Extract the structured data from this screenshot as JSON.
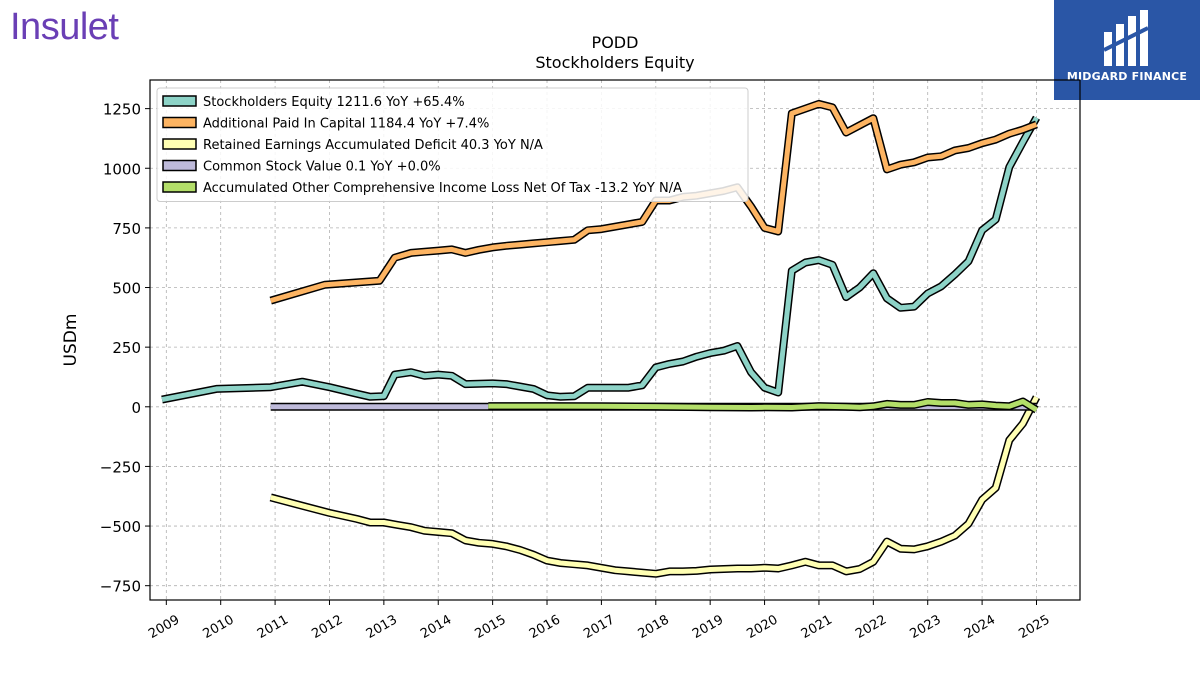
{
  "brand": {
    "name": "Insulet"
  },
  "badge": {
    "name": "MIDGARD FINANCE",
    "color": "#2a56a6"
  },
  "chart_data": {
    "type": "line",
    "title": "PODD",
    "subtitle": "Stockholders  Equity",
    "ylabel": "USDm",
    "xlabel": "",
    "ylim": [
      -810,
      1370
    ],
    "xlim": [
      2008.7,
      2025.8
    ],
    "yticks": [
      -750,
      -500,
      -250,
      0,
      250,
      500,
      750,
      1000,
      1250
    ],
    "ytick_labels": [
      "−750",
      "−500",
      "−250",
      "0",
      "250",
      "500",
      "750",
      "1000",
      "1250"
    ],
    "xticks": [
      2009,
      2010,
      2011,
      2012,
      2013,
      2014,
      2015,
      2016,
      2017,
      2018,
      2019,
      2020,
      2021,
      2022,
      2023,
      2024,
      2025
    ],
    "xtick_labels": [
      "2009",
      "2010",
      "2011",
      "2012",
      "2013",
      "2014",
      "2015",
      "2016",
      "2017",
      "2018",
      "2019",
      "2020",
      "2021",
      "2022",
      "2023",
      "2024",
      "2025"
    ],
    "grid": true,
    "legend_position": "top-left",
    "series": [
      {
        "name": "Stockholders Equity  1211.6 YoY +65.4%",
        "color": "#8dd3c7",
        "points": [
          [
            2008.92,
            30
          ],
          [
            2009.92,
            75
          ],
          [
            2010.92,
            82
          ],
          [
            2011.5,
            105
          ],
          [
            2012.0,
            82
          ],
          [
            2012.5,
            55
          ],
          [
            2012.75,
            42
          ],
          [
            2013.0,
            45
          ],
          [
            2013.2,
            135
          ],
          [
            2013.5,
            145
          ],
          [
            2013.75,
            130
          ],
          [
            2014.0,
            135
          ],
          [
            2014.25,
            130
          ],
          [
            2014.5,
            95
          ],
          [
            2015.0,
            98
          ],
          [
            2015.25,
            95
          ],
          [
            2015.5,
            85
          ],
          [
            2015.75,
            75
          ],
          [
            2016.0,
            48
          ],
          [
            2016.25,
            42
          ],
          [
            2016.5,
            44
          ],
          [
            2016.75,
            80
          ],
          [
            2017.0,
            80
          ],
          [
            2017.25,
            80
          ],
          [
            2017.5,
            80
          ],
          [
            2017.75,
            90
          ],
          [
            2018.0,
            165
          ],
          [
            2018.25,
            180
          ],
          [
            2018.5,
            190
          ],
          [
            2018.75,
            210
          ],
          [
            2019.0,
            225
          ],
          [
            2019.25,
            235
          ],
          [
            2019.5,
            255
          ],
          [
            2019.75,
            145
          ],
          [
            2020.0,
            80
          ],
          [
            2020.25,
            60
          ],
          [
            2020.5,
            570
          ],
          [
            2020.75,
            605
          ],
          [
            2021.0,
            615
          ],
          [
            2021.25,
            595
          ],
          [
            2021.5,
            460
          ],
          [
            2021.75,
            500
          ],
          [
            2022.0,
            560
          ],
          [
            2022.25,
            455
          ],
          [
            2022.5,
            415
          ],
          [
            2022.75,
            420
          ],
          [
            2023.0,
            475
          ],
          [
            2023.25,
            505
          ],
          [
            2023.5,
            555
          ],
          [
            2023.75,
            610
          ],
          [
            2024.0,
            740
          ],
          [
            2024.25,
            785
          ],
          [
            2024.5,
            1005
          ],
          [
            2024.75,
            1110
          ],
          [
            2025.0,
            1212
          ]
        ]
      },
      {
        "name": "Additional Paid In Capital  1184.4 YoY +7.4%",
        "color": "#fdb462",
        "points": [
          [
            2010.92,
            445
          ],
          [
            2011.92,
            512
          ],
          [
            2012.92,
            528
          ],
          [
            2013.2,
            625
          ],
          [
            2013.5,
            645
          ],
          [
            2013.75,
            650
          ],
          [
            2014.0,
            655
          ],
          [
            2014.25,
            660
          ],
          [
            2014.5,
            645
          ],
          [
            2014.75,
            658
          ],
          [
            2015.0,
            668
          ],
          [
            2015.25,
            675
          ],
          [
            2015.5,
            680
          ],
          [
            2015.75,
            685
          ],
          [
            2016.0,
            690
          ],
          [
            2016.25,
            695
          ],
          [
            2016.5,
            700
          ],
          [
            2016.75,
            740
          ],
          [
            2017.0,
            745
          ],
          [
            2017.25,
            755
          ],
          [
            2017.5,
            765
          ],
          [
            2017.75,
            775
          ],
          [
            2018.0,
            865
          ],
          [
            2018.25,
            865
          ],
          [
            2018.5,
            880
          ],
          [
            2018.75,
            885
          ],
          [
            2019.0,
            895
          ],
          [
            2019.25,
            905
          ],
          [
            2019.5,
            920
          ],
          [
            2019.75,
            840
          ],
          [
            2020.0,
            750
          ],
          [
            2020.25,
            735
          ],
          [
            2020.5,
            1230
          ],
          [
            2020.75,
            1250
          ],
          [
            2021.0,
            1270
          ],
          [
            2021.25,
            1255
          ],
          [
            2021.5,
            1150
          ],
          [
            2021.75,
            1180
          ],
          [
            2022.0,
            1210
          ],
          [
            2022.25,
            995
          ],
          [
            2022.5,
            1015
          ],
          [
            2022.75,
            1025
          ],
          [
            2023.0,
            1045
          ],
          [
            2023.25,
            1050
          ],
          [
            2023.5,
            1075
          ],
          [
            2023.75,
            1085
          ],
          [
            2024.0,
            1105
          ],
          [
            2024.25,
            1120
          ],
          [
            2024.5,
            1145
          ],
          [
            2024.75,
            1162
          ],
          [
            2025.0,
            1184
          ]
        ]
      },
      {
        "name": "Retained Earnings Accumulated Deficit  40.3 YoY N/A",
        "color": "#ffffb3",
        "points": [
          [
            2010.92,
            -380
          ],
          [
            2011.5,
            -415
          ],
          [
            2012.0,
            -445
          ],
          [
            2012.5,
            -470
          ],
          [
            2012.75,
            -485
          ],
          [
            2013.0,
            -485
          ],
          [
            2013.25,
            -495
          ],
          [
            2013.5,
            -505
          ],
          [
            2013.75,
            -520
          ],
          [
            2014.0,
            -525
          ],
          [
            2014.25,
            -530
          ],
          [
            2014.5,
            -560
          ],
          [
            2014.75,
            -570
          ],
          [
            2015.0,
            -575
          ],
          [
            2015.25,
            -585
          ],
          [
            2015.5,
            -600
          ],
          [
            2015.75,
            -620
          ],
          [
            2016.0,
            -645
          ],
          [
            2016.25,
            -655
          ],
          [
            2016.5,
            -660
          ],
          [
            2016.75,
            -665
          ],
          [
            2017.0,
            -675
          ],
          [
            2017.25,
            -685
          ],
          [
            2017.5,
            -690
          ],
          [
            2017.75,
            -695
          ],
          [
            2018.0,
            -700
          ],
          [
            2018.25,
            -690
          ],
          [
            2018.5,
            -690
          ],
          [
            2018.75,
            -688
          ],
          [
            2019.0,
            -682
          ],
          [
            2019.25,
            -680
          ],
          [
            2019.5,
            -678
          ],
          [
            2019.75,
            -678
          ],
          [
            2020.0,
            -675
          ],
          [
            2020.25,
            -678
          ],
          [
            2020.5,
            -665
          ],
          [
            2020.75,
            -650
          ],
          [
            2021.0,
            -665
          ],
          [
            2021.25,
            -665
          ],
          [
            2021.5,
            -690
          ],
          [
            2021.75,
            -680
          ],
          [
            2022.0,
            -650
          ],
          [
            2022.25,
            -565
          ],
          [
            2022.5,
            -595
          ],
          [
            2022.75,
            -598
          ],
          [
            2023.0,
            -585
          ],
          [
            2023.25,
            -565
          ],
          [
            2023.5,
            -540
          ],
          [
            2023.75,
            -490
          ],
          [
            2024.0,
            -390
          ],
          [
            2024.25,
            -340
          ],
          [
            2024.5,
            -140
          ],
          [
            2024.75,
            -70
          ],
          [
            2025.0,
            40
          ]
        ]
      },
      {
        "name": "Common Stock Value  0.1 YoY +0.0%",
        "color": "#bebada",
        "points": [
          [
            2010.92,
            0.1
          ],
          [
            2014.92,
            0.1
          ],
          [
            2016.0,
            0.1
          ],
          [
            2018.0,
            0.1
          ],
          [
            2020.0,
            0.1
          ],
          [
            2022.0,
            0.1
          ],
          [
            2023.0,
            0.1
          ],
          [
            2025.0,
            0.1
          ]
        ]
      },
      {
        "name": "Accumulated Other Comprehensive Income Loss Net Of Tax  -13.2 YoY N/A",
        "color": "#b3de69",
        "points": [
          [
            2014.92,
            3
          ],
          [
            2016.0,
            3
          ],
          [
            2017.0,
            2
          ],
          [
            2018.0,
            1
          ],
          [
            2019.0,
            -2
          ],
          [
            2019.75,
            -3
          ],
          [
            2020.0,
            -2
          ],
          [
            2020.5,
            -3
          ],
          [
            2021.0,
            3
          ],
          [
            2021.5,
            0
          ],
          [
            2021.75,
            -2
          ],
          [
            2022.0,
            2
          ],
          [
            2022.25,
            12
          ],
          [
            2022.5,
            8
          ],
          [
            2022.75,
            8
          ],
          [
            2023.0,
            20
          ],
          [
            2023.25,
            16
          ],
          [
            2023.5,
            16
          ],
          [
            2023.75,
            8
          ],
          [
            2024.0,
            10
          ],
          [
            2024.25,
            5
          ],
          [
            2024.5,
            2
          ],
          [
            2024.75,
            22
          ],
          [
            2025.0,
            -13.2
          ]
        ]
      }
    ]
  }
}
